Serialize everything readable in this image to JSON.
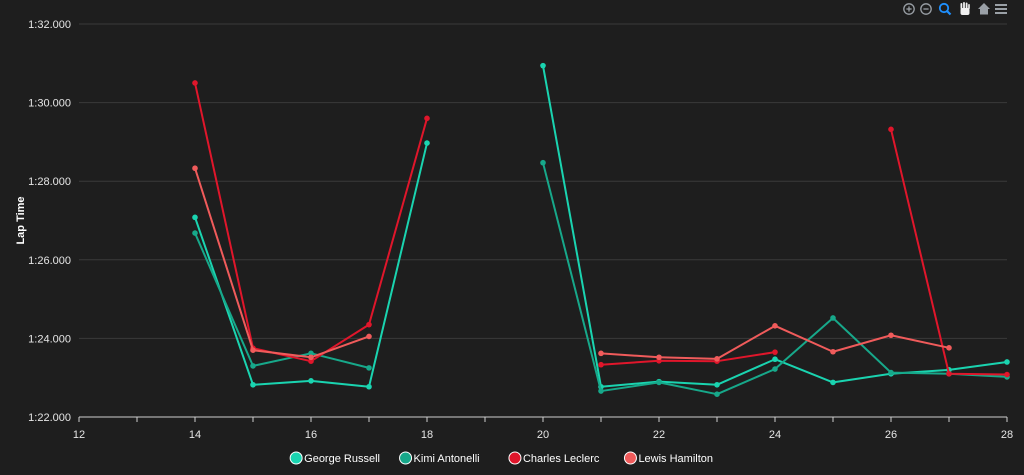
{
  "chart_data": {
    "type": "line",
    "title": "",
    "xlabel": "",
    "ylabel": "Lap Time",
    "xlim": [
      12,
      28
    ],
    "ylim": [
      82,
      92
    ],
    "x_ticks": [
      12,
      14,
      16,
      18,
      20,
      22,
      24,
      26,
      28
    ],
    "y_ticks": [
      82,
      84,
      86,
      88,
      90,
      92
    ],
    "y_tick_labels": [
      "1:22.000",
      "1:24.000",
      "1:26.000",
      "1:28.000",
      "1:30.000",
      "1:32.000"
    ],
    "x_tick_labels": [
      "12",
      "14",
      "16",
      "18",
      "20",
      "22",
      "24",
      "26",
      "28"
    ],
    "grid": "horizontal",
    "legend_position": "bottom-center",
    "series": [
      {
        "name": "George Russell",
        "color": "#1ad4b0",
        "points": [
          [
            14,
            87.08
          ],
          [
            15,
            82.82
          ],
          [
            16,
            82.92
          ],
          [
            17,
            82.77
          ],
          [
            18,
            88.97
          ],
          [
            20,
            90.94
          ],
          [
            21,
            82.77
          ],
          [
            22,
            82.9
          ],
          [
            23,
            82.82
          ],
          [
            24,
            83.47
          ],
          [
            25,
            82.88
          ],
          [
            26,
            83.1
          ],
          [
            27,
            83.2
          ],
          [
            28,
            83.4
          ]
        ]
      },
      {
        "name": "Kimi Antonelli",
        "color": "#17a88a",
        "points": [
          [
            14,
            86.68
          ],
          [
            15,
            83.3
          ],
          [
            16,
            83.62
          ],
          [
            17,
            83.25
          ],
          [
            20,
            88.47
          ],
          [
            21,
            82.66
          ],
          [
            22,
            82.88
          ],
          [
            23,
            82.58
          ],
          [
            24,
            83.22
          ],
          [
            25,
            84.52
          ],
          [
            26,
            83.13
          ],
          [
            27,
            83.1
          ],
          [
            28,
            83.02
          ]
        ]
      },
      {
        "name": "Charles Leclerc",
        "color": "#e0162b",
        "points": [
          [
            14,
            90.5
          ],
          [
            15,
            83.75
          ],
          [
            16,
            83.42
          ],
          [
            17,
            84.35
          ],
          [
            18,
            89.6
          ],
          [
            21,
            83.33
          ],
          [
            22,
            83.43
          ],
          [
            23,
            83.42
          ],
          [
            24,
            83.65
          ],
          [
            26,
            89.32
          ],
          [
            27,
            83.1
          ],
          [
            28,
            83.08
          ]
        ]
      },
      {
        "name": "Lewis Hamilton",
        "color": "#f05b5b",
        "points": [
          [
            14,
            88.33
          ],
          [
            15,
            83.7
          ],
          [
            16,
            83.52
          ],
          [
            17,
            84.05
          ],
          [
            21,
            83.62
          ],
          [
            22,
            83.52
          ],
          [
            23,
            83.48
          ],
          [
            24,
            84.32
          ],
          [
            25,
            83.66
          ],
          [
            26,
            84.08
          ],
          [
            27,
            83.76
          ]
        ]
      }
    ]
  },
  "toolbar": {
    "zoom_in_icon": "zoom-in-icon",
    "zoom_out_icon": "zoom-out-icon",
    "selection_zoom_icon": "selection-zoom-icon",
    "pan_icon": "pan-hand-icon",
    "reset_icon": "home-icon",
    "menu_icon": "menu-icon"
  }
}
